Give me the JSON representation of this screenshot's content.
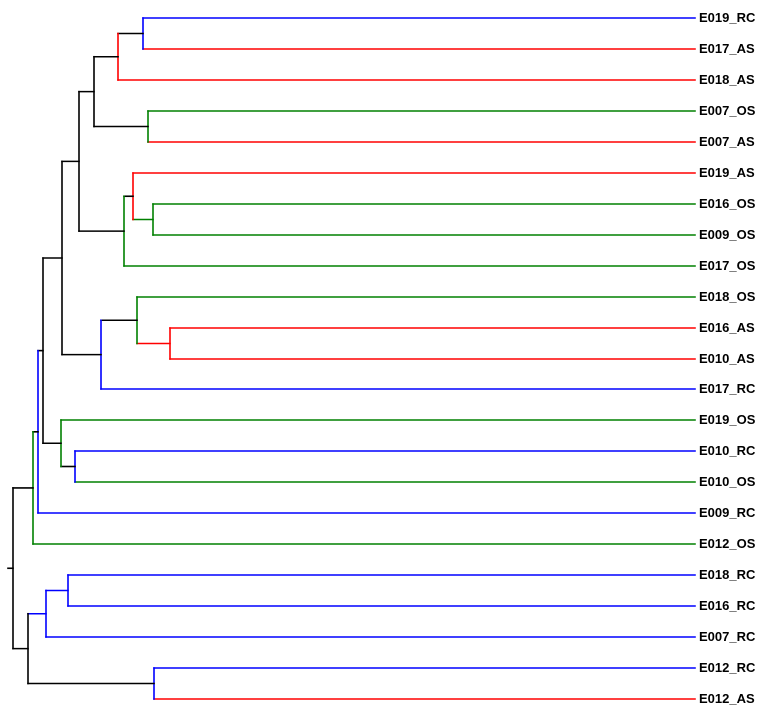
{
  "colors": {
    "RC": "#0000ff",
    "AS": "#ff0000",
    "OS": "#008000",
    "internal": "#000000",
    "background": "#ffffff"
  },
  "leaves": [
    {
      "label": "E019_RC",
      "group": "RC"
    },
    {
      "label": "E017_AS",
      "group": "AS"
    },
    {
      "label": "E018_AS",
      "group": "AS"
    },
    {
      "label": "E007_OS",
      "group": "OS"
    },
    {
      "label": "E007_AS",
      "group": "AS"
    },
    {
      "label": "E019_AS",
      "group": "AS"
    },
    {
      "label": "E016_OS",
      "group": "OS"
    },
    {
      "label": "E009_OS",
      "group": "OS"
    },
    {
      "label": "E017_OS",
      "group": "OS"
    },
    {
      "label": "E018_OS",
      "group": "OS"
    },
    {
      "label": "E016_AS",
      "group": "AS"
    },
    {
      "label": "E010_AS",
      "group": "AS"
    },
    {
      "label": "E017_RC",
      "group": "RC"
    },
    {
      "label": "E019_OS",
      "group": "OS"
    },
    {
      "label": "E010_RC",
      "group": "RC"
    },
    {
      "label": "E010_OS",
      "group": "OS"
    },
    {
      "label": "E009_RC",
      "group": "RC"
    },
    {
      "label": "E012_OS",
      "group": "OS"
    },
    {
      "label": "E018_RC",
      "group": "RC"
    },
    {
      "label": "E016_RC",
      "group": "RC"
    },
    {
      "label": "E007_RC",
      "group": "RC"
    },
    {
      "label": "E012_RC",
      "group": "RC"
    },
    {
      "label": "E012_AS",
      "group": "AS"
    }
  ]
}
